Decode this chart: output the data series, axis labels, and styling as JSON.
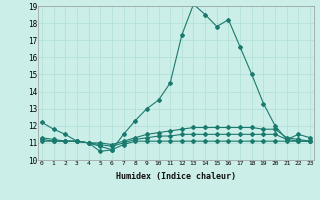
{
  "xlabel": "Humidex (Indice chaleur)",
  "x": [
    0,
    1,
    2,
    3,
    4,
    5,
    6,
    7,
    8,
    9,
    10,
    11,
    12,
    13,
    14,
    15,
    16,
    17,
    18,
    19,
    20,
    21,
    22,
    23
  ],
  "line1": [
    12.2,
    11.8,
    11.5,
    11.1,
    11.0,
    10.5,
    10.6,
    11.5,
    12.3,
    13.0,
    13.5,
    14.5,
    17.3,
    19.1,
    18.5,
    17.8,
    18.2,
    16.6,
    15.0,
    13.3,
    12.0,
    11.2,
    11.5,
    11.3
  ],
  "line2": [
    11.1,
    11.1,
    11.1,
    11.1,
    11.0,
    10.8,
    10.6,
    10.9,
    11.1,
    11.1,
    11.1,
    11.1,
    11.1,
    11.1,
    11.1,
    11.1,
    11.1,
    11.1,
    11.1,
    11.1,
    11.1,
    11.1,
    11.1,
    11.1
  ],
  "line3": [
    11.2,
    11.1,
    11.1,
    11.1,
    11.0,
    10.9,
    10.8,
    11.0,
    11.2,
    11.3,
    11.4,
    11.4,
    11.5,
    11.5,
    11.5,
    11.5,
    11.5,
    11.5,
    11.5,
    11.5,
    11.5,
    11.2,
    11.1,
    11.1
  ],
  "line4": [
    11.3,
    11.2,
    11.1,
    11.1,
    11.0,
    11.0,
    10.9,
    11.1,
    11.3,
    11.5,
    11.6,
    11.7,
    11.8,
    11.9,
    11.9,
    11.9,
    11.9,
    11.9,
    11.9,
    11.8,
    11.8,
    11.3,
    11.2,
    11.1
  ],
  "line_color": "#1a7a6e",
  "bg_color": "#cceee8",
  "grid_color": "#b0ddd8",
  "ylim_min": 10,
  "ylim_max": 19,
  "xlim_min": 0,
  "xlim_max": 23,
  "yticks": [
    10,
    11,
    12,
    13,
    14,
    15,
    16,
    17,
    18,
    19
  ],
  "xticks": [
    0,
    1,
    2,
    3,
    4,
    5,
    6,
    7,
    8,
    9,
    10,
    11,
    12,
    13,
    14,
    15,
    16,
    17,
    18,
    19,
    20,
    21,
    22,
    23
  ]
}
